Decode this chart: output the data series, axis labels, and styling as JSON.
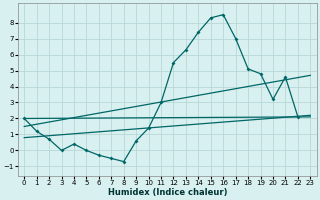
{
  "xlabel": "Humidex (Indice chaleur)",
  "bg_color": "#d9f0f0",
  "grid_color": "#b8d8d8",
  "line_color": "#006666",
  "xlim": [
    -0.5,
    23.5
  ],
  "ylim": [
    -1.6,
    9.2
  ],
  "yticks": [
    -1,
    0,
    1,
    2,
    3,
    4,
    5,
    6,
    7,
    8
  ],
  "xticks": [
    0,
    1,
    2,
    3,
    4,
    5,
    6,
    7,
    8,
    9,
    10,
    11,
    12,
    13,
    14,
    15,
    16,
    17,
    18,
    19,
    20,
    21,
    22,
    23
  ],
  "curve1_x": [
    0,
    1,
    2,
    3,
    4,
    5,
    6,
    7,
    8,
    9,
    10,
    11,
    12,
    13,
    14,
    15,
    16,
    17,
    18,
    19,
    20,
    21,
    22
  ],
  "curve1_y": [
    2.0,
    1.2,
    0.7,
    0.0,
    0.4,
    0.0,
    -0.3,
    -0.5,
    -0.7,
    0.6,
    1.4,
    3.0,
    5.5,
    6.3,
    7.4,
    8.3,
    8.5,
    7.0,
    5.1,
    4.8,
    3.2,
    4.6,
    2.1
  ],
  "line1_x": [
    0,
    23
  ],
  "line1_y": [
    2.0,
    2.1
  ],
  "line2_x": [
    0,
    23
  ],
  "line2_y": [
    1.5,
    4.7
  ],
  "line3_x": [
    0,
    23
  ],
  "line3_y": [
    0.8,
    2.2
  ]
}
